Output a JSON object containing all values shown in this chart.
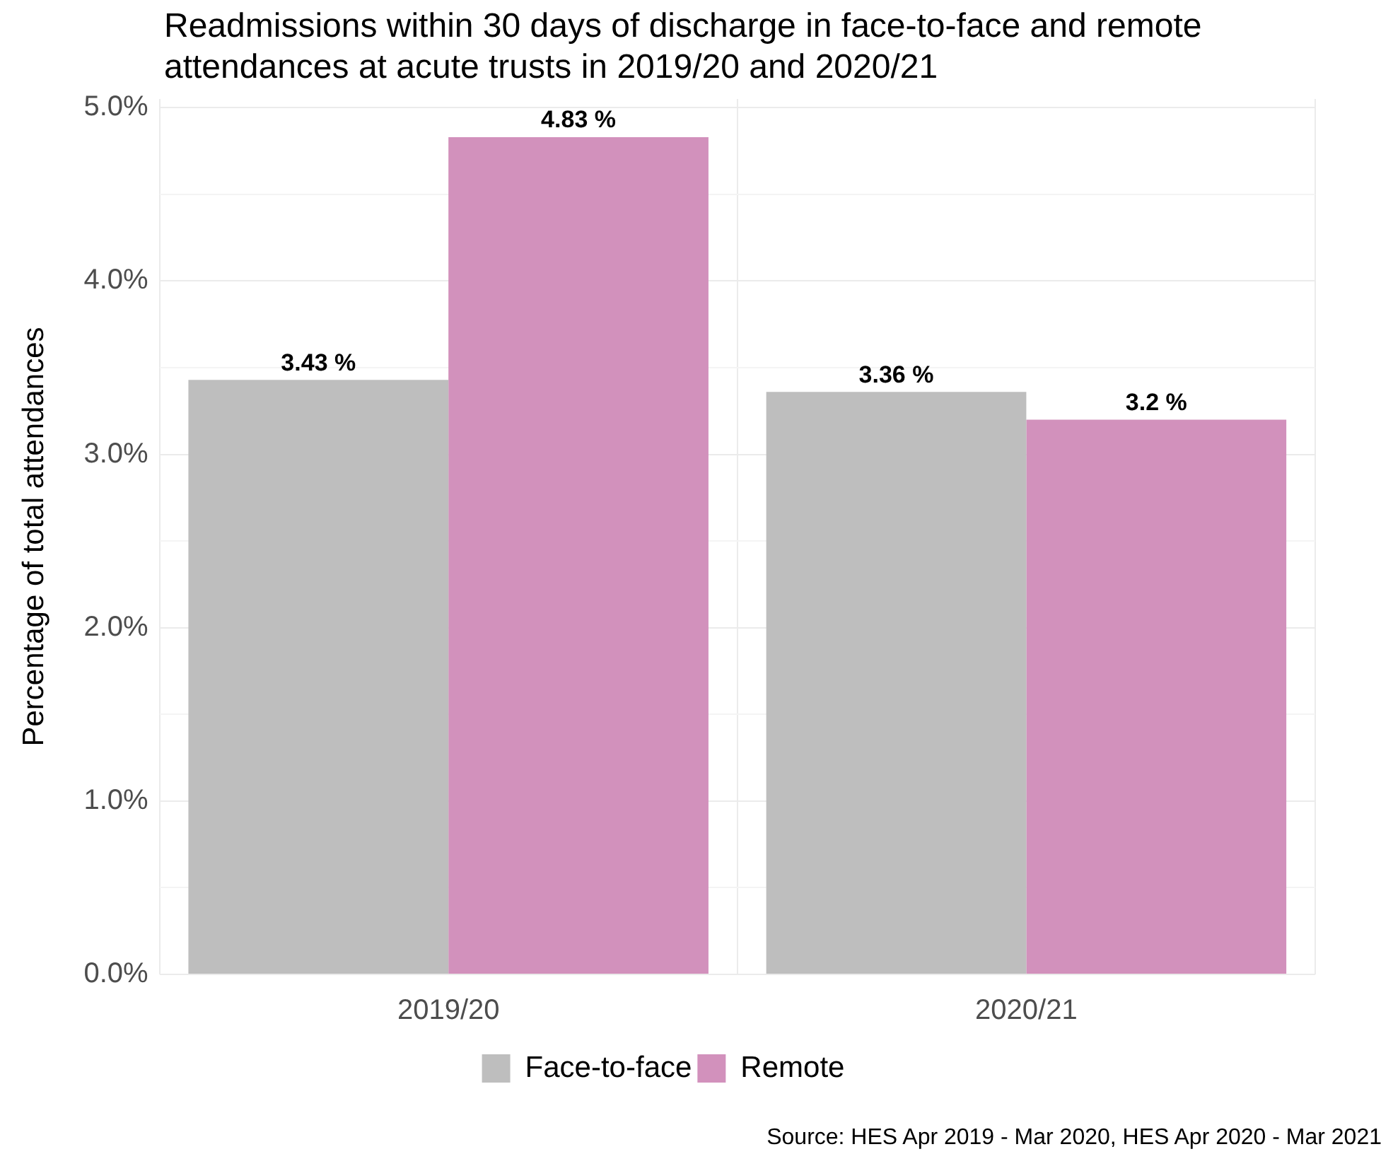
{
  "chart_data": {
    "type": "bar",
    "title": "Readmissions within 30 days of discharge in face-to-face and remote attendances at acute trusts in 2019/20 and 2020/21",
    "ylabel": "Percentage of total attendances",
    "categories": [
      "2019/20",
      "2020/21"
    ],
    "series": [
      {
        "name": "Face-to-face",
        "color": "#bebebe",
        "values": [
          3.43,
          3.36
        ],
        "value_labels": [
          "3.43 %",
          "3.36 %"
        ]
      },
      {
        "name": "Remote",
        "color": "#d291bc",
        "values": [
          4.83,
          3.2
        ],
        "value_labels": [
          "4.83 %",
          "3.2 %"
        ]
      }
    ],
    "ylim": [
      0,
      5.05
    ],
    "yticks": [
      {
        "value": 0,
        "label": "0.0%"
      },
      {
        "value": 0.5,
        "label": null
      },
      {
        "value": 1,
        "label": "1.0%"
      },
      {
        "value": 1.5,
        "label": null
      },
      {
        "value": 2,
        "label": "2.0%"
      },
      {
        "value": 2.5,
        "label": null
      },
      {
        "value": 3,
        "label": "3.0%"
      },
      {
        "value": 3.5,
        "label": null
      },
      {
        "value": 4,
        "label": "4.0%"
      },
      {
        "value": 4.5,
        "label": null
      },
      {
        "value": 5,
        "label": "5.0%"
      }
    ],
    "grid": true,
    "legend": "bottom",
    "annotations": [
      "Source: HES Apr 2019 - Mar 2020, HES Apr 2020 - Mar 2021"
    ]
  }
}
